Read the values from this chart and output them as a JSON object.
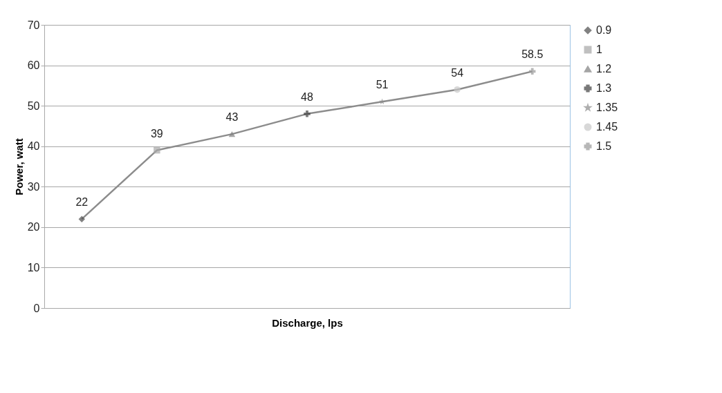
{
  "chart_data": {
    "type": "line",
    "xlabel": "Discharge, lps",
    "ylabel": "Power, watt",
    "categories": [
      null,
      null,
      null,
      null,
      null,
      null,
      null
    ],
    "series": [
      {
        "color": "#8c8c8c",
        "marker": "none",
        "values": [
          22,
          39,
          43,
          48,
          51,
          54,
          58.5
        ]
      },
      {
        "name": "0.9",
        "color": "#4d4d4d",
        "marker": "diamond",
        "values": [
          22,
          null,
          null,
          null,
          null,
          null,
          null
        ],
        "value_labels": [
          "22",
          null,
          null,
          null,
          null,
          null,
          null
        ]
      },
      {
        "name": "1",
        "color": "#a6a6a6",
        "marker": "square",
        "values": [
          null,
          39,
          null,
          null,
          null,
          null,
          null
        ],
        "value_labels": [
          null,
          "39",
          null,
          null,
          null,
          null,
          null
        ]
      },
      {
        "name": "1.2",
        "color": "#7f7f7f",
        "marker": "triangle",
        "values": [
          null,
          null,
          43,
          null,
          null,
          null,
          null
        ],
        "value_labels": [
          null,
          null,
          "43",
          null,
          null,
          null,
          null
        ]
      },
      {
        "name": "1.3",
        "color": "#404040",
        "marker": "cross",
        "values": [
          null,
          null,
          null,
          48,
          null,
          null,
          null
        ],
        "value_labels": [
          null,
          null,
          null,
          "48",
          null,
          null,
          null
        ]
      },
      {
        "name": "1.35",
        "color": "#8c8c8c",
        "marker": "star",
        "values": [
          null,
          null,
          null,
          null,
          51,
          null,
          null
        ],
        "value_labels": [
          null,
          null,
          null,
          null,
          "51",
          null,
          null
        ]
      },
      {
        "name": "1.45",
        "color": "#c8c8c8",
        "marker": "circle",
        "values": [
          null,
          null,
          null,
          null,
          null,
          54,
          null
        ],
        "value_labels": [
          null,
          null,
          null,
          null,
          null,
          "54",
          null
        ]
      },
      {
        "name": "1.5",
        "color": "#999999",
        "marker": "cross",
        "values": [
          null,
          null,
          null,
          null,
          null,
          null,
          58.5
        ],
        "value_labels": [
          null,
          null,
          null,
          null,
          null,
          null,
          "58.5"
        ]
      }
    ],
    "ylim": [
      0,
      70
    ],
    "yticks": [
      0,
      10,
      20,
      30,
      40,
      50,
      60,
      70
    ],
    "grid": "y",
    "legend": "right",
    "tick_labels": "y"
  }
}
